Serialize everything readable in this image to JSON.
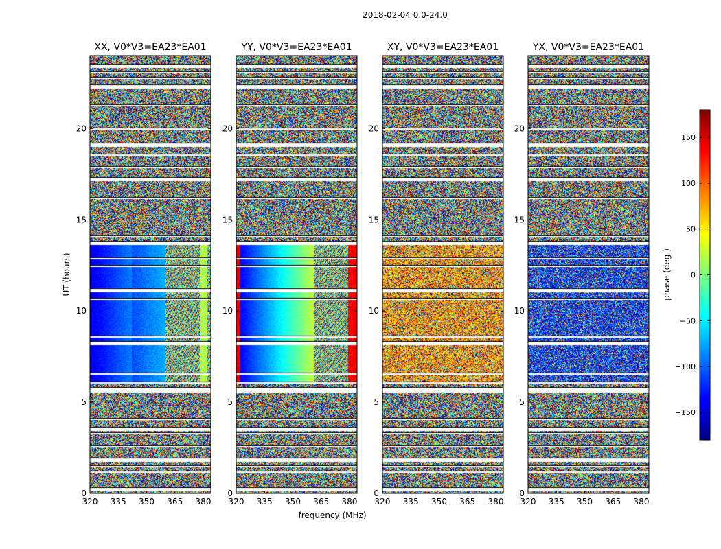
{
  "chart_data": {
    "type": "heatmap",
    "suptitle": "2018-02-04 0.0-24.0",
    "xlabel": "frequency (MHz)",
    "ylabel": "UT (hours)",
    "xlim": [
      320,
      384
    ],
    "ylim": [
      0,
      24
    ],
    "xticks": [
      320,
      335,
      350,
      365,
      380
    ],
    "yticks": [
      0,
      5,
      10,
      15,
      20
    ],
    "colorbar": {
      "label": "phase (deg.)",
      "range": [
        -180,
        180
      ],
      "ticks": [
        150,
        100,
        50,
        0,
        -50,
        -100,
        -150
      ],
      "tick_labels": [
        "150",
        "100",
        "50",
        "0",
        "−50",
        "−100",
        "−150"
      ],
      "colormap": [
        "#00007f",
        "#0000ff",
        "#007fff",
        "#00ffff",
        "#7fff7f",
        "#ffff00",
        "#ff7f00",
        "#ff0000",
        "#7f0000"
      ]
    },
    "panels": [
      {
        "title": "XX, V0*V3=EA23*EA01",
        "description": "coherent phase ramp during ~6.0-13.8 UT"
      },
      {
        "title": "YY, V0*V3=EA23*EA01",
        "description": "coherent phase ramp during ~6.0-13.8 UT"
      },
      {
        "title": "XY, V0*V3=EA23*EA01",
        "description": "weakly coherent phase ~6-13 UT"
      },
      {
        "title": "YX, V0*V3=EA23*EA01",
        "description": "weakly coherent phase ~6-13 UT"
      }
    ],
    "flagged_ut_hours": [
      0.3,
      1.2,
      1.5,
      1.9,
      2.6,
      3.3,
      3.6,
      4.1,
      5.6,
      5.8,
      6.1,
      6.6,
      8.3,
      8.6,
      10.7,
      11.2,
      12.5,
      12.9,
      13.8,
      14.1,
      16.2,
      17.3,
      17.9,
      18.6,
      19.2,
      20.0,
      21.3,
      22.4,
      22.8,
      23.1,
      23.5
    ]
  }
}
